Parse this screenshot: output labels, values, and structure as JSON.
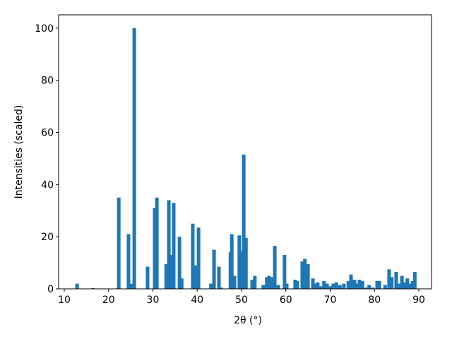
{
  "chart_data": {
    "type": "bar",
    "xlabel": "2θ (°)",
    "ylabel": "Intensities (scaled)",
    "x": [
      12.9,
      16.5,
      22.3,
      24.5,
      25.1,
      25.8,
      28.8,
      30.4,
      30.9,
      33.0,
      33.6,
      34.2,
      34.7,
      36.0,
      36.5,
      39.0,
      39.5,
      40.3,
      43.1,
      43.8,
      44.9,
      45.4,
      47.5,
      47.8,
      48.4,
      49.5,
      50.0,
      50.5,
      51.0,
      52.4,
      53.0,
      54.9,
      55.7,
      56.2,
      56.7,
      57.5,
      58.3,
      59.7,
      60.2,
      62.1,
      62.6,
      63.7,
      64.3,
      65.0,
      66.1,
      66.7,
      67.2,
      68.0,
      68.6,
      69.3,
      70.1,
      70.7,
      71.4,
      72.2,
      73.1,
      74.1,
      74.7,
      75.5,
      76.1,
      76.6,
      77.3,
      78.2,
      78.8,
      79.6,
      80.6,
      81.1,
      82.4,
      83.3,
      83.9,
      84.9,
      85.5,
      86.2,
      86.8,
      87.4,
      88.1,
      88.6,
      89.1
    ],
    "values": [
      2,
      0.3,
      35,
      21,
      2,
      100,
      8.5,
      31,
      35,
      9.5,
      34,
      13,
      33,
      20,
      4,
      25,
      9,
      23.5,
      2,
      15,
      8.5,
      0.5,
      14,
      21,
      5,
      20.5,
      14.5,
      51.5,
      19.5,
      3.5,
      5,
      1.5,
      4.5,
      5,
      4.5,
      16.5,
      1.5,
      13,
      2,
      3.5,
      3,
      10.5,
      11.5,
      9.5,
      4,
      2,
      2.5,
      1,
      3,
      2,
      1,
      2,
      2.5,
      1.5,
      2,
      3,
      5.5,
      3.5,
      2,
      3.5,
      3,
      0.5,
      1.5,
      0.5,
      3,
      3,
      1.5,
      7.5,
      4.5,
      6.5,
      2,
      5,
      2.5,
      4,
      2,
      3,
      6.5
    ],
    "color": "#1f77b4",
    "xlim": [
      8.73,
      92.87
    ],
    "xticks": [
      10,
      20,
      30,
      40,
      50,
      60,
      70,
      80,
      90
    ],
    "ylim": [
      0,
      105.1
    ],
    "yticks": [
      0,
      20,
      40,
      60,
      80,
      100
    ],
    "grid": false
  }
}
